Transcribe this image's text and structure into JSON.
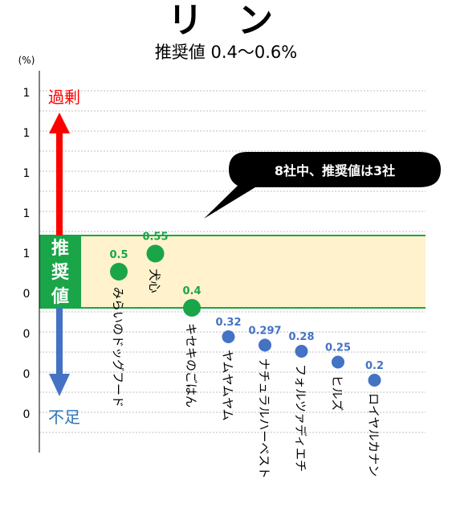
{
  "chart_data": {
    "type": "scatter",
    "title": "リ ン",
    "subtitle": "推奨値 0.4～0.6%",
    "unit_label": "(%)",
    "y_tick_labels": [
      "1",
      "1",
      "1",
      "1",
      "1",
      "0",
      "0",
      "0",
      "0"
    ],
    "ylim": [
      0.0,
      1.0
    ],
    "grid": true,
    "recommended_range": [
      0.4,
      0.6
    ],
    "recommended_label": "推奨値",
    "excess_label": "過剰",
    "deficit_label": "不足",
    "callout": "8社中、推奨値は3社",
    "categories": [
      "みらいのドッグフード",
      "犬心",
      "キセキのごはん",
      "ヤムヤムヤム",
      "ナチュラルハーベスト",
      "フォルツァディエチ",
      "ヒルズ",
      "ロイヤルカナン"
    ],
    "value_labels": [
      "0.5",
      "0.55",
      "0.4",
      "0.32",
      "0.297",
      "0.28",
      "0.25",
      "0.2"
    ],
    "values": [
      0.5,
      0.55,
      0.4,
      0.32,
      0.297,
      0.28,
      0.25,
      0.2
    ],
    "in_range": [
      true,
      true,
      true,
      false,
      false,
      false,
      false,
      false
    ]
  },
  "colors": {
    "in_range": "#1aa548",
    "out_of_range": "#4472c4",
    "band_fill": "#fff2cc",
    "band_border": "#1aa548",
    "excess_arrow": "#ff0000",
    "deficit_arrow": "#4472c4",
    "excess_text": "#ff0000",
    "deficit_text": "#2e75b6"
  }
}
